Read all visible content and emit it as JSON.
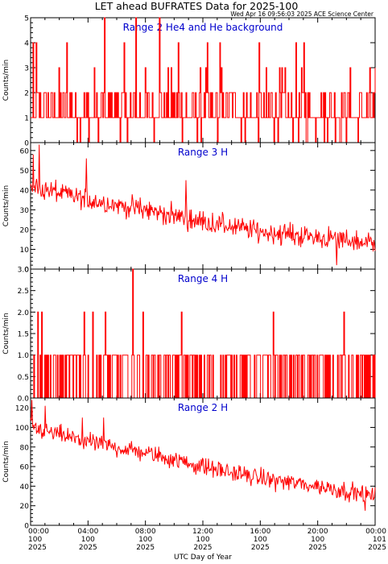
{
  "header": {
    "title": "LET ahead BUFRATES Data for 2025-100",
    "timestamp": "Wed Apr 16 09:56:03 2025 ACE Science Center"
  },
  "x_axis": {
    "label": "UTC Day of Year",
    "range_hours": [
      0,
      24
    ],
    "ticks": [
      {
        "hours": 0,
        "time": "00:00",
        "day": "100",
        "year": "2025"
      },
      {
        "hours": 4,
        "time": "04:00",
        "day": "100",
        "year": "2025"
      },
      {
        "hours": 8,
        "time": "08:00",
        "day": "100",
        "year": "2025"
      },
      {
        "hours": 12,
        "time": "12:00",
        "day": "100",
        "year": "2025"
      },
      {
        "hours": 16,
        "time": "16:00",
        "day": "100",
        "year": "2025"
      },
      {
        "hours": 20,
        "time": "20:00",
        "day": "100",
        "year": "2025"
      },
      {
        "hours": 24,
        "time": "00:00",
        "day": "101",
        "year": "2025"
      }
    ]
  },
  "colors": {
    "data_line": "#ff0000",
    "title_in_panel": "#0000cc",
    "axes": "#000000",
    "background": "#ffffff"
  },
  "chart_data": [
    {
      "type": "line",
      "title": "Range 2 He4 and He background",
      "ylabel": "Counts/min",
      "ylim": [
        0,
        5
      ],
      "yticks": [
        "0",
        "1",
        "2",
        "3",
        "4",
        "5"
      ],
      "xlim": [
        0,
        24
      ],
      "series": [
        {
          "x_start": 0,
          "x_end": 24,
          "count": 440,
          "kind": "discrete",
          "weights": [
            0.08,
            0.6,
            0.27,
            0.04,
            0.008,
            0.002
          ],
          "spikes": [
            [
              5.15,
              5
            ],
            [
              7.35,
              5
            ],
            [
              8.95,
              5
            ],
            [
              19.05,
              4
            ],
            [
              0.4,
              4
            ],
            [
              2.5,
              4
            ],
            [
              10.3,
              4
            ],
            [
              13.2,
              4
            ]
          ]
        }
      ]
    },
    {
      "type": "line",
      "title": "Range 3 H",
      "ylabel": "Counts/min",
      "ylim": [
        0,
        64
      ],
      "yticks": [
        "0",
        "10",
        "20",
        "30",
        "40",
        "50",
        "60"
      ],
      "xlim": [
        0,
        24
      ],
      "series": [
        {
          "x_start": 0,
          "x_end": 24,
          "count": 520,
          "kind": "trend",
          "trend": [
            [
              0,
              42
            ],
            [
              4,
              35
            ],
            [
              8,
              30
            ],
            [
              12,
              24
            ],
            [
              16,
              19
            ],
            [
              20,
              16
            ],
            [
              24,
              13
            ]
          ],
          "noise": 5.5,
          "spikes": [
            [
              0.6,
              63
            ],
            [
              0.2,
              58
            ],
            [
              3.9,
              56
            ],
            [
              10.8,
              45
            ],
            [
              21.3,
              2
            ]
          ]
        }
      ]
    },
    {
      "type": "line",
      "title": "Range 4 H",
      "ylabel": "Counts/min",
      "ylim": [
        0,
        3
      ],
      "yticks": [
        "0.0",
        "0.5",
        "1.0",
        "1.5",
        "2.0",
        "2.5",
        "3.0"
      ],
      "xlim": [
        0,
        24
      ],
      "series": [
        {
          "x_start": 0,
          "x_end": 24,
          "count": 440,
          "kind": "discrete",
          "weights": [
            0.55,
            0.45
          ],
          "spikes": [
            [
              7.1,
              3
            ],
            [
              0.5,
              2
            ],
            [
              0.75,
              2
            ],
            [
              3.7,
              2
            ],
            [
              4.3,
              2
            ],
            [
              5.2,
              2
            ],
            [
              7.8,
              2
            ],
            [
              10.5,
              2
            ],
            [
              16.9,
              2
            ],
            [
              21.8,
              2
            ]
          ]
        }
      ]
    },
    {
      "type": "line",
      "title": "Range 2 H",
      "ylabel": "Counts/min",
      "ylim": [
        0,
        130
      ],
      "yticks": [
        "0",
        "20",
        "40",
        "60",
        "80",
        "100",
        "120"
      ],
      "xlim": [
        0,
        24
      ],
      "series": [
        {
          "x_start": 0,
          "x_end": 24,
          "count": 520,
          "kind": "trend",
          "trend": [
            [
              0,
              100
            ],
            [
              4,
              85
            ],
            [
              8,
              74
            ],
            [
              12,
              60
            ],
            [
              16,
              48
            ],
            [
              20,
              40
            ],
            [
              24,
              30
            ]
          ],
          "noise": 9,
          "spikes": [
            [
              0.1,
              128
            ],
            [
              1.0,
              122
            ],
            [
              3.6,
              110
            ],
            [
              5.1,
              110
            ],
            [
              23.3,
              15
            ]
          ]
        }
      ]
    }
  ]
}
